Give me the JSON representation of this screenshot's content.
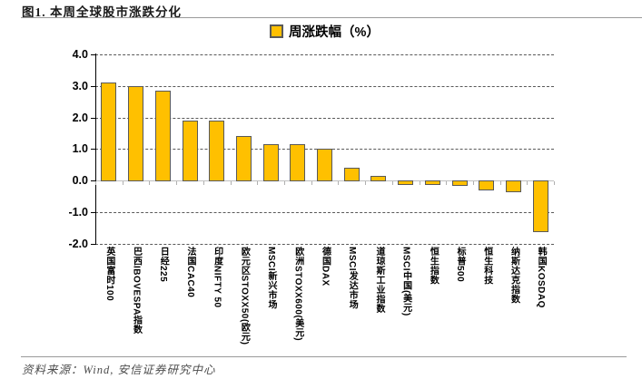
{
  "figure": {
    "title": "图1. 本周全球股市涨跌分化",
    "source_note": "资料来源：Wind, 安信证券研究中心"
  },
  "legend": {
    "label": "周涨跌幅（%）",
    "marker_color": "#FFC000"
  },
  "colors": {
    "bar_fill": "#FFC000",
    "bar_border": "#595959",
    "gridline": "#595959",
    "zero_line": "#C0C0C0",
    "axis": "#000000",
    "rule": "#9A9A9A",
    "source_text": "#4D4D4D"
  },
  "chart_data": {
    "type": "bar",
    "title": "周涨跌幅（%）",
    "categories": [
      "英国富时100",
      "巴西IBOVESPA指数",
      "日经225",
      "法国CAC40",
      "印度NIFTY 50",
      "欧元区STOXX50(欧元)",
      "MSCI新兴市场",
      "欧洲STOXX600(美元)",
      "德国DAX",
      "MSCI发达市场",
      "道琼斯工业指数",
      "MSCI中国(美元)",
      "恒生指数",
      "标普500",
      "恒生科技",
      "纳斯达克指数",
      "韩国KOSDAQ"
    ],
    "values": [
      3.1,
      3.0,
      2.85,
      1.9,
      1.9,
      1.4,
      1.15,
      1.15,
      1.0,
      0.4,
      0.15,
      -0.1,
      -0.1,
      -0.15,
      -0.3,
      -0.35,
      -1.6
    ],
    "xlabel": "",
    "ylabel": "",
    "ylim": [
      -2.0,
      4.0
    ],
    "yticks": [
      4.0,
      3.0,
      2.0,
      1.0,
      0.0,
      -1.0,
      -2.0
    ],
    "grid": "horizontal-dashed",
    "legend_position": "top-center"
  }
}
